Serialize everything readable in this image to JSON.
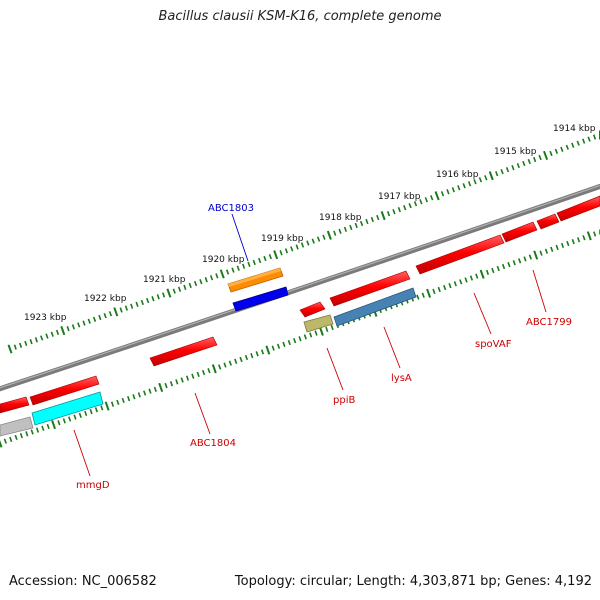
{
  "title": "Bacillus clausii KSM-K16, complete genome",
  "footer": {
    "accession": "Accession: NC_006582",
    "summary": "Topology: circular; Length: 4,303,871 bp; Genes: 4,192"
  },
  "ruler": [
    {
      "label": "1914 kbp"
    },
    {
      "label": "1915 kbp"
    },
    {
      "label": "1916 kbp"
    },
    {
      "label": "1917 kbp"
    },
    {
      "label": "1918 kbp"
    },
    {
      "label": "1919 kbp"
    },
    {
      "label": "1920 kbp"
    },
    {
      "label": "1921 kbp"
    },
    {
      "label": "1922 kbp"
    },
    {
      "label": "1923 kbp"
    }
  ],
  "gene_labels": [
    {
      "label": "ABC1803",
      "color": "#0000cc"
    },
    {
      "label": "ppiB",
      "color": "#cc0000"
    },
    {
      "label": "lysA",
      "color": "#cc0000"
    },
    {
      "label": "spoVAF",
      "color": "#cc0000"
    },
    {
      "label": "ABC1799",
      "color": "#cc0000"
    },
    {
      "label": "ABC1804",
      "color": "#cc0000"
    },
    {
      "label": "mmgD",
      "color": "#cc0000"
    }
  ],
  "colors": {
    "backbone": "#7a7a7a",
    "ruler": "#1a7a1a",
    "gene_red": "#ff0000",
    "gene_orange": "#ff8c00",
    "gene_blue": "#0000ee",
    "gene_steel": "#4682b4",
    "gene_olive": "#bdb76b",
    "gene_cyan": "#00ffff",
    "gene_grey": "#c0c0c0"
  }
}
